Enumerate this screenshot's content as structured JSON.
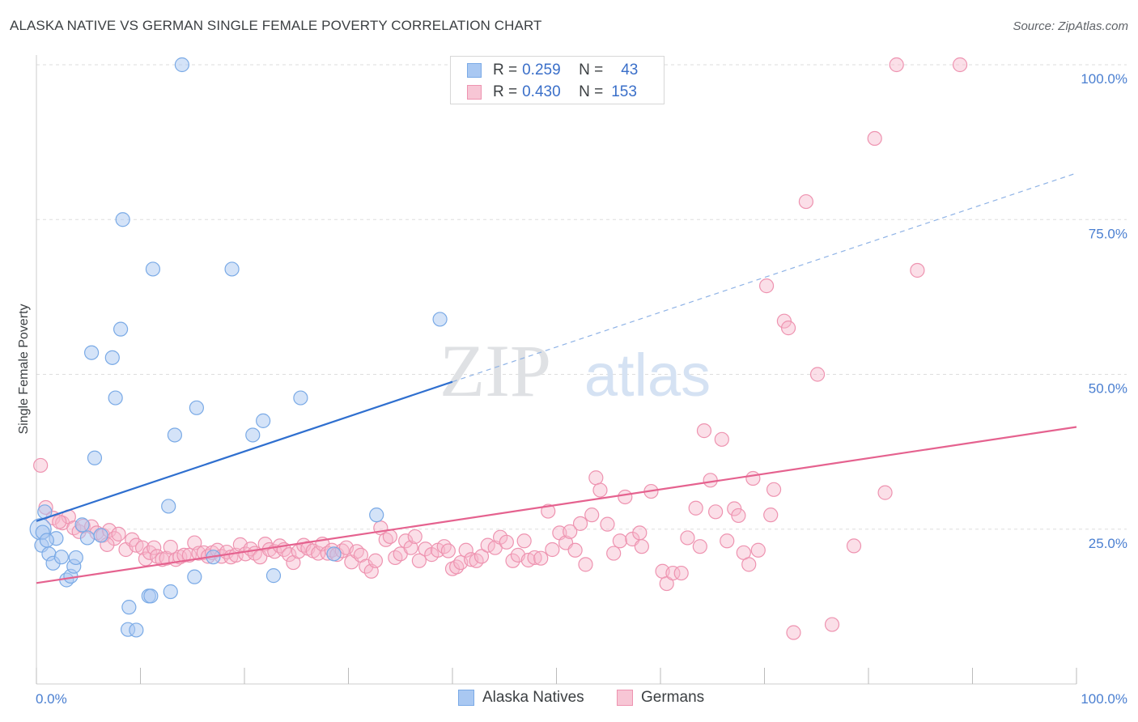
{
  "title": "ALASKA NATIVE VS GERMAN SINGLE FEMALE POVERTY CORRELATION CHART",
  "source": "Source: ZipAtlas.com",
  "watermark": {
    "part1": "ZIP",
    "part2": "atlas"
  },
  "colors": {
    "blue_fill": "#a9c8f2",
    "blue_stroke": "#7aaae6",
    "blue_line": "#2f6fcf",
    "pink_fill": "#f7b8cb",
    "pink_stroke": "#ee93b0",
    "pink_line": "#e5628f",
    "grid": "#dddddd",
    "axis_text": "#4a7fd1"
  },
  "legend_box": {
    "rows": [
      {
        "r_label": "R = ",
        "r_value": "0.259",
        "n_label": "N = ",
        "n_value": "43"
      },
      {
        "r_label": "R = ",
        "r_value": "0.430",
        "n_label": "N = ",
        "n_value": "153"
      }
    ]
  },
  "bottom_legend": {
    "series1": "Alaska Natives",
    "series2": "Germans"
  },
  "chart_data": {
    "type": "scatter",
    "title": "ALASKA NATIVE VS GERMAN SINGLE FEMALE POVERTY CORRELATION CHART",
    "xlabel": "",
    "ylabel": "Single Female Poverty",
    "xlim": [
      0,
      100
    ],
    "ylim": [
      0,
      100
    ],
    "x_tick_labels": [
      "0.0%",
      "100.0%"
    ],
    "y_ticks": [
      25,
      50,
      75,
      100
    ],
    "y_tick_labels": [
      "25.0%",
      "50.0%",
      "75.0%",
      "100.0%"
    ],
    "grid": "horizontal dashed",
    "legend_placement": "top-center",
    "series": [
      {
        "name": "Alaska Natives",
        "r": 0.259,
        "n": 43,
        "trend": {
          "x0": 0,
          "y0": 26.3,
          "x1": 40,
          "y1": 48.8,
          "dashed_to_x": 100,
          "dashed_y": 82.5
        },
        "points": [
          [
            0.4,
            25.0
          ],
          [
            0.5,
            22.4
          ],
          [
            0.8,
            27.8
          ],
          [
            1.2,
            21.0
          ],
          [
            1.6,
            19.5
          ],
          [
            1.9,
            23.5
          ],
          [
            2.4,
            20.5
          ],
          [
            2.9,
            16.8
          ],
          [
            3.3,
            17.4
          ],
          [
            3.6,
            19.0
          ],
          [
            3.8,
            20.4
          ],
          [
            4.4,
            25.7
          ],
          [
            4.9,
            23.6
          ],
          [
            5.3,
            53.5
          ],
          [
            5.6,
            36.5
          ],
          [
            6.2,
            24.0
          ],
          [
            7.3,
            52.7
          ],
          [
            7.6,
            46.2
          ],
          [
            8.1,
            57.3
          ],
          [
            8.3,
            75.0
          ],
          [
            8.8,
            8.8
          ],
          [
            8.9,
            12.4
          ],
          [
            9.6,
            8.7
          ],
          [
            10.8,
            14.2
          ],
          [
            11.0,
            14.2
          ],
          [
            11.2,
            67.0
          ],
          [
            12.7,
            28.7
          ],
          [
            12.9,
            14.9
          ],
          [
            13.3,
            40.2
          ],
          [
            14.0,
            100.0
          ],
          [
            15.2,
            17.3
          ],
          [
            15.4,
            44.6
          ],
          [
            17.0,
            20.5
          ],
          [
            18.8,
            67.0
          ],
          [
            20.8,
            40.2
          ],
          [
            21.8,
            42.5
          ],
          [
            22.8,
            17.5
          ],
          [
            25.4,
            46.2
          ],
          [
            28.6,
            21.0
          ],
          [
            32.7,
            27.3
          ],
          [
            38.8,
            58.9
          ],
          [
            0.6,
            24.5
          ],
          [
            1.0,
            23.2
          ]
        ]
      },
      {
        "name": "Germans",
        "r": 0.43,
        "n": 153,
        "trend": {
          "x0": 0,
          "y0": 16.3,
          "x1": 100,
          "y1": 41.5
        },
        "points": [
          [
            0.4,
            35.3
          ],
          [
            0.9,
            28.5
          ],
          [
            1.6,
            26.8
          ],
          [
            2.5,
            26.0
          ],
          [
            3.1,
            27.0
          ],
          [
            3.6,
            25.2
          ],
          [
            4.1,
            24.6
          ],
          [
            4.5,
            25.5
          ],
          [
            5.3,
            25.4
          ],
          [
            5.8,
            24.4
          ],
          [
            6.4,
            24.0
          ],
          [
            7.0,
            24.8
          ],
          [
            7.5,
            23.5
          ],
          [
            7.9,
            24.2
          ],
          [
            8.6,
            21.7
          ],
          [
            9.2,
            23.3
          ],
          [
            9.6,
            22.4
          ],
          [
            10.2,
            22.0
          ],
          [
            10.5,
            20.2
          ],
          [
            10.9,
            21.2
          ],
          [
            11.3,
            22.0
          ],
          [
            11.6,
            20.6
          ],
          [
            12.1,
            20.1
          ],
          [
            12.5,
            20.3
          ],
          [
            12.9,
            22.1
          ],
          [
            13.4,
            20.1
          ],
          [
            13.8,
            20.5
          ],
          [
            14.2,
            20.8
          ],
          [
            14.7,
            20.8
          ],
          [
            15.2,
            22.8
          ],
          [
            15.6,
            21.1
          ],
          [
            16.1,
            21.2
          ],
          [
            16.5,
            20.6
          ],
          [
            16.9,
            21.2
          ],
          [
            17.4,
            21.6
          ],
          [
            17.8,
            20.6
          ],
          [
            18.3,
            21.3
          ],
          [
            18.7,
            20.5
          ],
          [
            19.2,
            20.8
          ],
          [
            19.6,
            22.5
          ],
          [
            20.1,
            21.0
          ],
          [
            20.6,
            21.8
          ],
          [
            21.0,
            21.1
          ],
          [
            21.5,
            20.5
          ],
          [
            22.0,
            22.6
          ],
          [
            22.4,
            21.7
          ],
          [
            22.9,
            21.4
          ],
          [
            23.4,
            22.3
          ],
          [
            23.8,
            21.7
          ],
          [
            24.3,
            20.9
          ],
          [
            24.7,
            19.6
          ],
          [
            25.2,
            21.4
          ],
          [
            25.7,
            22.4
          ],
          [
            26.1,
            21.9
          ],
          [
            26.6,
            21.5
          ],
          [
            27.1,
            21.1
          ],
          [
            27.5,
            22.6
          ],
          [
            28.0,
            21.1
          ],
          [
            28.4,
            21.6
          ],
          [
            28.9,
            20.9
          ],
          [
            29.4,
            21.5
          ],
          [
            29.8,
            22.0
          ],
          [
            30.3,
            19.7
          ],
          [
            30.8,
            21.4
          ],
          [
            31.2,
            20.8
          ],
          [
            31.7,
            19.0
          ],
          [
            32.2,
            18.2
          ],
          [
            32.6,
            19.9
          ],
          [
            33.1,
            25.2
          ],
          [
            33.6,
            23.3
          ],
          [
            34.0,
            23.8
          ],
          [
            34.5,
            20.4
          ],
          [
            35.0,
            21.0
          ],
          [
            35.5,
            23.1
          ],
          [
            36.0,
            22.0
          ],
          [
            36.4,
            23.8
          ],
          [
            36.8,
            19.9
          ],
          [
            37.4,
            21.8
          ],
          [
            38.0,
            20.9
          ],
          [
            38.6,
            21.6
          ],
          [
            39.2,
            22.2
          ],
          [
            39.6,
            21.5
          ],
          [
            40.0,
            18.6
          ],
          [
            40.4,
            18.9
          ],
          [
            40.8,
            19.6
          ],
          [
            41.3,
            21.6
          ],
          [
            41.8,
            20.1
          ],
          [
            42.3,
            19.9
          ],
          [
            42.8,
            20.6
          ],
          [
            43.4,
            22.4
          ],
          [
            44.1,
            22.0
          ],
          [
            44.6,
            23.7
          ],
          [
            45.2,
            22.9
          ],
          [
            45.8,
            19.9
          ],
          [
            46.3,
            20.8
          ],
          [
            46.9,
            23.1
          ],
          [
            47.3,
            20.0
          ],
          [
            47.9,
            20.4
          ],
          [
            48.5,
            20.3
          ],
          [
            49.2,
            27.9
          ],
          [
            49.6,
            21.7
          ],
          [
            50.3,
            24.4
          ],
          [
            50.9,
            22.8
          ],
          [
            51.3,
            24.6
          ],
          [
            51.8,
            21.6
          ],
          [
            52.3,
            25.9
          ],
          [
            52.8,
            19.3
          ],
          [
            53.4,
            27.3
          ],
          [
            53.8,
            33.3
          ],
          [
            54.2,
            31.3
          ],
          [
            54.9,
            25.8
          ],
          [
            55.5,
            21.1
          ],
          [
            56.1,
            23.1
          ],
          [
            56.6,
            30.2
          ],
          [
            57.3,
            23.4
          ],
          [
            58.0,
            24.4
          ],
          [
            58.2,
            22.2
          ],
          [
            59.1,
            31.1
          ],
          [
            60.2,
            18.2
          ],
          [
            60.6,
            16.2
          ],
          [
            61.2,
            17.9
          ],
          [
            62.0,
            17.9
          ],
          [
            62.6,
            23.6
          ],
          [
            63.4,
            28.4
          ],
          [
            63.8,
            22.2
          ],
          [
            64.2,
            40.9
          ],
          [
            64.8,
            32.9
          ],
          [
            65.3,
            27.8
          ],
          [
            65.9,
            39.5
          ],
          [
            66.4,
            23.1
          ],
          [
            67.1,
            28.3
          ],
          [
            67.5,
            27.2
          ],
          [
            68.0,
            21.2
          ],
          [
            68.5,
            19.3
          ],
          [
            68.9,
            33.2
          ],
          [
            69.4,
            21.6
          ],
          [
            70.2,
            64.3
          ],
          [
            70.6,
            27.3
          ],
          [
            70.9,
            31.4
          ],
          [
            71.9,
            58.6
          ],
          [
            72.3,
            57.5
          ],
          [
            72.8,
            8.3
          ],
          [
            74.0,
            77.9
          ],
          [
            75.1,
            50.0
          ],
          [
            76.5,
            9.6
          ],
          [
            78.6,
            22.3
          ],
          [
            80.6,
            88.1
          ],
          [
            81.6,
            30.9
          ],
          [
            82.7,
            100.0
          ],
          [
            84.7,
            66.8
          ],
          [
            88.8,
            100.0
          ],
          [
            2.2,
            26.2
          ],
          [
            6.8,
            22.5
          ]
        ]
      }
    ]
  }
}
